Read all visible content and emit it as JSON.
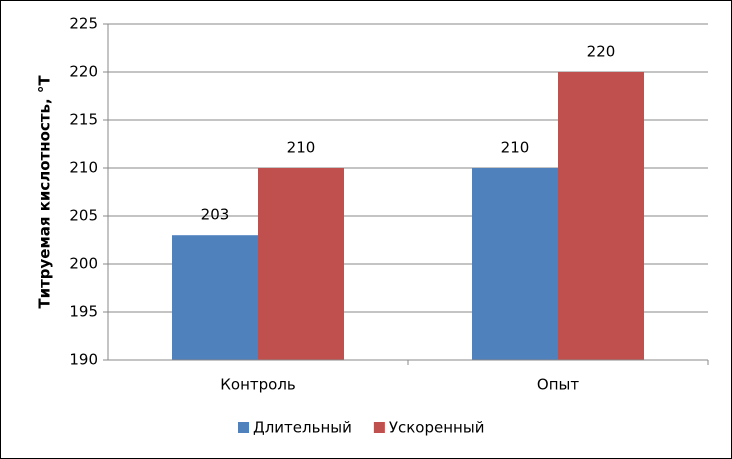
{
  "chart_data": {
    "type": "bar",
    "y_label": "Титруемая кислотность, °Т",
    "categories": [
      "Контроль",
      "Опыт"
    ],
    "series": [
      {
        "name": "Длительный",
        "color": "#4f81bd",
        "values": [
          203,
          210
        ]
      },
      {
        "name": "Ускоренный",
        "color": "#c0504d",
        "values": [
          210,
          220
        ]
      }
    ],
    "ylim": [
      190,
      225
    ],
    "yticks": [
      190,
      195,
      200,
      205,
      210,
      215,
      220,
      225
    ],
    "grid": true,
    "legend": "bottom"
  }
}
